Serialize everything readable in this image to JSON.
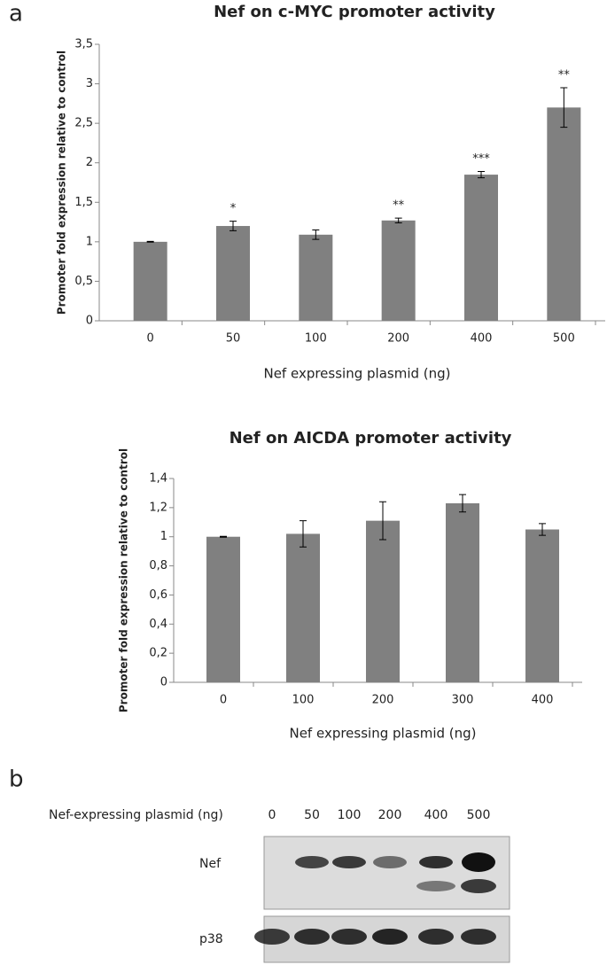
{
  "panel_labels": [
    "a",
    "b"
  ],
  "chart_data": [
    {
      "type": "bar",
      "title": "Nef on c-MYC promoter activity",
      "x_label": "Nef expressing plasmid (ng)",
      "y_label": "Promoter fold expression relative to control",
      "categories": [
        "0",
        "50",
        "100",
        "200",
        "400",
        "500"
      ],
      "values": [
        1.0,
        1.2,
        1.09,
        1.27,
        1.85,
        2.7
      ],
      "errors": [
        0.005,
        0.06,
        0.06,
        0.03,
        0.04,
        0.25
      ],
      "annotations": [
        null,
        "*",
        null,
        "**",
        "***",
        "**"
      ],
      "color": "#808080",
      "ylim": [
        0,
        3.5
      ],
      "yticks": [
        0,
        {
          "value": 0.5,
          "label": "0,5"
        },
        1,
        {
          "value": 1.5,
          "label": "1,5"
        },
        2,
        {
          "value": 2.5,
          "label": "2,5"
        },
        3,
        {
          "value": 3.5,
          "label": "3,5"
        }
      ]
    },
    {
      "type": "bar",
      "title": "Nef on AICDA promoter activity",
      "x_label": "Nef expressing plasmid (ng)",
      "y_label": "Promoter fold expression relative to control",
      "categories": [
        "0",
        "100",
        "200",
        "300",
        "400"
      ],
      "values": [
        1.0,
        1.02,
        1.11,
        1.23,
        1.05
      ],
      "errors": [
        0.003,
        0.09,
        0.13,
        0.06,
        0.04
      ],
      "color": "#808080",
      "ylim": [
        0,
        1.4
      ],
      "yticks": [
        0,
        {
          "value": 0.2,
          "label": "0,2"
        },
        {
          "value": 0.4,
          "label": "0,4"
        },
        {
          "value": 0.6,
          "label": "0,6"
        },
        {
          "value": 0.8,
          "label": "0,8"
        },
        1,
        {
          "value": 1.2,
          "label": "1,2"
        },
        {
          "value": 1.4,
          "label": "1,4"
        }
      ]
    }
  ],
  "blot": {
    "header": "Nef-expressing plasmid (ng)",
    "lanes": [
      "0",
      "50",
      "100",
      "200",
      "400",
      "500"
    ],
    "rows": [
      "Nef",
      "p38"
    ]
  }
}
